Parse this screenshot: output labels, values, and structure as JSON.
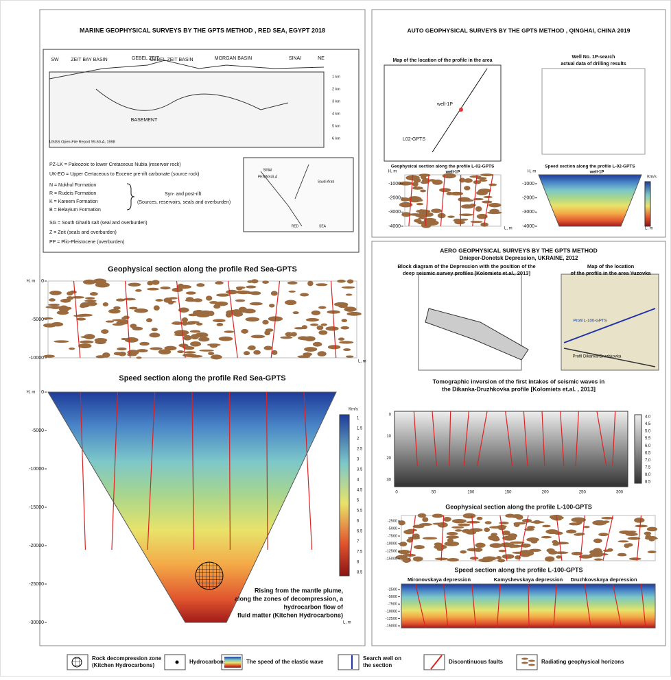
{
  "left_panel": {
    "title": "MARINE GEOPHYSICAL SURVEYS BY THE GPTS METHOD , RED SEA, EGYPT 2018",
    "cross_section": {
      "labels": [
        "SW",
        "ZEIT BAY BASIN",
        "GEBEL ZEIT",
        "GEBEL ZEIT BASIN",
        "MORGAN BASIN",
        "SINAI",
        "NE",
        "BASEMENT"
      ],
      "source": "USGS Open-File Report 99-50-A, 1998",
      "depth_scale": [
        "1 km",
        "2 km",
        "3 km",
        "4 km",
        "5 km",
        "6 km"
      ]
    },
    "legend_lines": [
      "PZ-LK = Paleozoic to lower  Cretaceous Nubia (reservoir rock)",
      "UK-EO = Upper Certaceous to Eocene pre-rift carbonate (source rock)",
      "N = Nukhul Formation",
      "R = Rudeis Formation",
      "K = Kareem Formation",
      "B = Belayium Formation",
      "SG = South Gharib salt (seal and overburden)",
      "Z = Zeit (seals and overburden)",
      "PP = Plio-Pleistocene (overburden)"
    ],
    "rift_note": [
      "Syn- and post-rift",
      "(Sources, reservoirs, seals and overburden)"
    ],
    "map_labels": [
      "SINAI",
      "PENINSULA",
      "Saudi Arab",
      "RED",
      "SEA"
    ],
    "geophysical_section": {
      "title": "Geophysical section along the profile Red Sea-GPTS",
      "y_label": "H, m",
      "x_label": "L, m",
      "yticks": [
        0,
        -5000,
        -10000
      ]
    },
    "speed_section": {
      "title": "Speed section along the profile Red Sea-GPTS",
      "y_label": "H, m",
      "x_label": "L, m",
      "yticks": [
        0,
        -5000,
        -10000,
        -15000,
        -20000,
        -25000,
        -30000
      ],
      "colorbar_unit": "Km/s",
      "colorbar_ticks": [
        1,
        1.5,
        2,
        2.5,
        3,
        3.5,
        4,
        4.5,
        5,
        5.5,
        6,
        6.5,
        7,
        7.5,
        8,
        8.5
      ],
      "annotation": [
        "Rising from the mantle plume,",
        "along the zones of decompression, a",
        "hydrocarbon flow of",
        "fluid matter (Kitchen Hydrocarbons)"
      ]
    }
  },
  "top_right_panel": {
    "title": "AUTO GEOPHYSICAL SURVEYS BY THE GPTS METHOD  , QINGHAI, CHINA 2019",
    "map_title": "Map of the location of the profile in the area",
    "well_label": "well-1P",
    "profile_label": "L02-GPTS",
    "table_title": [
      "Well No. 1P-search",
      "actual data of drilling results"
    ],
    "geo_title": "Geophysical section along the profile L-02-GPTS",
    "speed_title": "Speed section along the profile L-02-GPTS",
    "y_label": "H, m",
    "x_label": "L, m",
    "yticks": [
      -1000,
      -2000,
      -3000,
      -4000
    ],
    "colorbar_unit": "Km/s"
  },
  "bottom_right_panel": {
    "title": "AERO GEOPHYSICAL SURVEYS BY THE GPTS METHOD",
    "subtitle": "Dnieper-Donetsk Depression, UKRAINE, 2012",
    "block_title": [
      "Block diagram of the Depression with the position of the",
      "deep seismic survey profiles [Kolomiets et.al., 2013]"
    ],
    "map_title": [
      "Map of the location",
      "of the profils in the area Yuzovka"
    ],
    "map_labels": [
      "Profil L-100-GPTS",
      "Profil Dikanka-Druzhkovka"
    ],
    "tomo_title": [
      "Tomographic inversion of the first intakes of seismic waves in",
      "the Dikanka-Druzhkovka profile [Kolomiets et.al. , 2013]"
    ],
    "tomo_xticks": [
      0,
      50,
      100,
      150,
      200,
      250,
      300
    ],
    "tomo_yticks": [
      0,
      10,
      20,
      30
    ],
    "tomo_colorbar": [
      "4,0",
      "4,5",
      "5,0",
      "5,5",
      "6,0",
      "6,5",
      "7,0",
      "7,5",
      "8,0",
      "8,5"
    ],
    "geo_title": "Geophysical section along the profile L-100-GPTS",
    "speed_title": "Speed section along the profile L-100-GPTS",
    "yticks": [
      -2500,
      -5000,
      -7500,
      -10000,
      -12500,
      -15000
    ],
    "depressions": [
      "Mironovskaya depression",
      "Kamyshevskaya depression",
      "Druzhkovskaya depression"
    ]
  },
  "legend": [
    [
      "Rock decompression zone",
      "(Kitchen Hydrocarbons)"
    ],
    [
      "Hydrocarbons"
    ],
    [
      "The speed of the elastic wave"
    ],
    [
      "Search well on",
      "the section"
    ],
    [
      "Discontinuous faults"
    ],
    [
      "Radiating geophysical horizons"
    ]
  ]
}
